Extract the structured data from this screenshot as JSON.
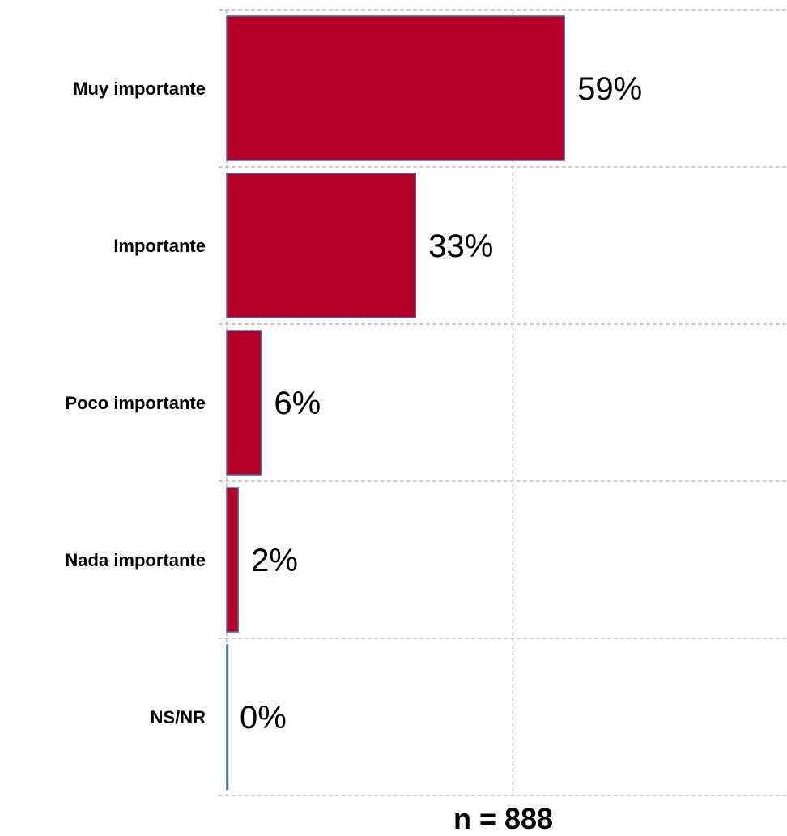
{
  "chart_data": {
    "type": "bar",
    "orientation": "horizontal",
    "categories": [
      "Muy importante",
      "Importante",
      "Poco importante",
      "Nada importante",
      "NS/NR"
    ],
    "values": [
      59,
      33,
      6,
      2,
      0
    ],
    "value_labels": [
      "59%",
      "33%",
      "6%",
      "2%",
      "0%"
    ],
    "xlim": [
      0,
      100
    ],
    "grid": true,
    "colors": {
      "bar": "#b5002a",
      "bar_edge": "#4a6aa0",
      "grid": "#bbbbbb"
    }
  },
  "footer": {
    "n_label": "n = 888"
  }
}
